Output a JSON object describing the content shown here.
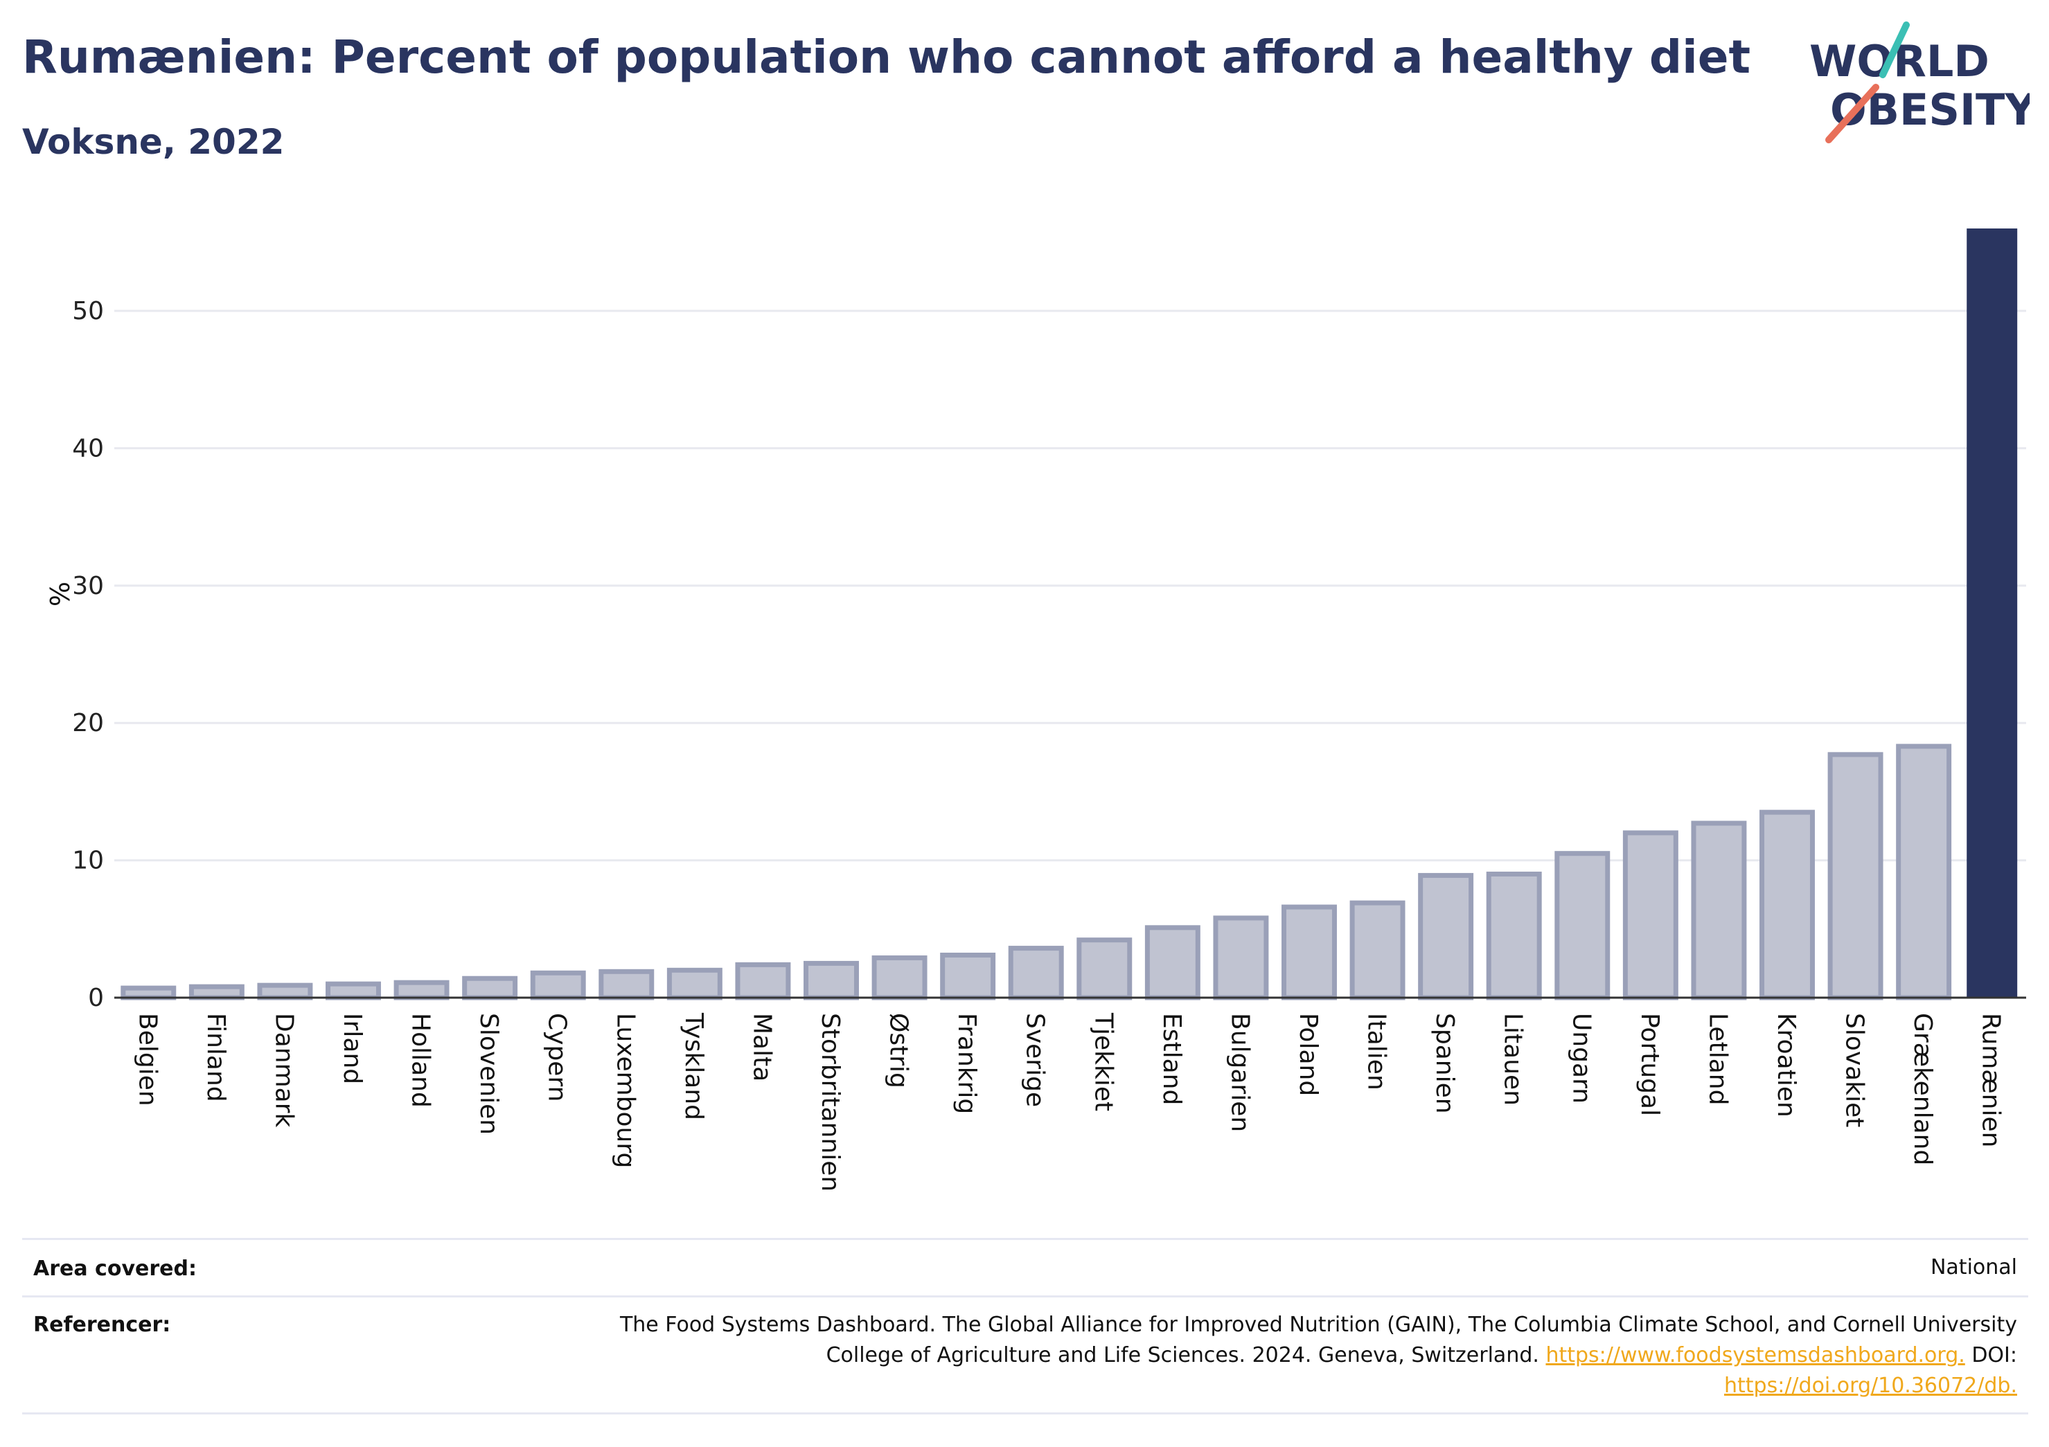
{
  "header": {
    "title": "Rumænien: Percent of population who cannot afford a healthy diet",
    "subtitle": "Voksne, 2022",
    "logo_line1": "WORLD",
    "logo_line2": "OBESITY"
  },
  "colors": {
    "highlight": "#2a3560",
    "bar_fill": "#c0c3d1",
    "bar_stroke": "#9aa0b8",
    "title": "#2a3560",
    "link": "#f0a81c",
    "logo_slash_top": "#3bbfb4",
    "logo_slash_bottom": "#e8705a"
  },
  "chart_data": {
    "type": "bar",
    "ylabel": "%",
    "xlabel": "",
    "ylim": [
      0,
      56
    ],
    "yticks": [
      0,
      10,
      20,
      30,
      40,
      50
    ],
    "grid": true,
    "highlight_category": "Rumænien",
    "categories": [
      "Belgien",
      "Finland",
      "Danmark",
      "Irland",
      "Holland",
      "Slovenien",
      "Cypern",
      "Luxembourg",
      "Tyskland",
      "Malta",
      "Storbritannien",
      "Østrig",
      "Frankrig",
      "Sverige",
      "Tjekkiet",
      "Estland",
      "Bulgarien",
      "Poland",
      "Italien",
      "Spanien",
      "Litauen",
      "Ungarn",
      "Portugal",
      "Letland",
      "Kroatien",
      "Slovakiet",
      "Grækenland",
      "Rumænien"
    ],
    "values": [
      0.7,
      0.8,
      0.9,
      1.0,
      1.1,
      1.4,
      1.8,
      1.9,
      2.0,
      2.4,
      2.5,
      2.9,
      3.1,
      3.6,
      4.2,
      5.1,
      5.8,
      6.6,
      6.9,
      8.9,
      9.0,
      10.5,
      12.0,
      12.7,
      13.5,
      17.7,
      18.3,
      56.0
    ]
  },
  "footer": {
    "area_label": "Area covered:",
    "area_value": "National",
    "ref_label": "Referencer:",
    "ref_line1": "The Food Systems Dashboard. The Global Alliance for Improved Nutrition (GAIN), The Columbia Climate School, and Cornell University",
    "ref_line2_text": "College of Agriculture and Life Sciences. 2024. Geneva, Switzerland.",
    "ref_link1": "https://www.foodsystemsdashboard.org.",
    "ref_doi_label": "DOI:",
    "ref_link2": "https://doi.org/10.36072/db."
  }
}
